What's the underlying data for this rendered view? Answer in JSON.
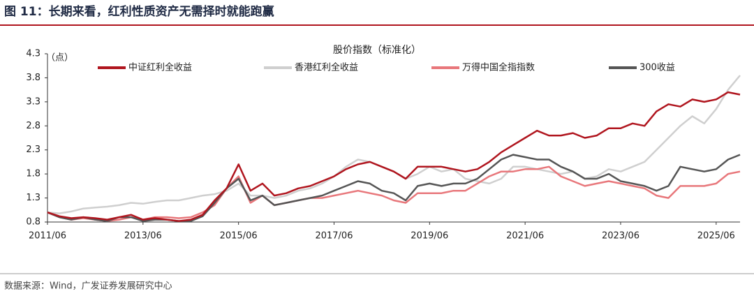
{
  "header": {
    "title": "图 11：长期来看，红利性质资产无需择时就能跑赢"
  },
  "chart_data": {
    "type": "line",
    "title": "股价指数（标准化）",
    "y_label": "（点）",
    "x": [
      "2011/06",
      "2011/09",
      "2011/12",
      "2012/03",
      "2012/06",
      "2012/09",
      "2012/12",
      "2013/03",
      "2013/06",
      "2013/09",
      "2013/12",
      "2014/03",
      "2014/06",
      "2014/09",
      "2014/12",
      "2015/03",
      "2015/06",
      "2015/09",
      "2015/12",
      "2016/03",
      "2016/06",
      "2016/09",
      "2016/12",
      "2017/03",
      "2017/06",
      "2017/09",
      "2017/12",
      "2018/03",
      "2018/06",
      "2018/09",
      "2018/12",
      "2019/03",
      "2019/06",
      "2019/09",
      "2019/12",
      "2020/03",
      "2020/06",
      "2020/09",
      "2020/12",
      "2021/03",
      "2021/06",
      "2021/09",
      "2021/12",
      "2022/03",
      "2022/06",
      "2022/09",
      "2022/12",
      "2023/03",
      "2023/06",
      "2023/09",
      "2023/12",
      "2024/03",
      "2024/06",
      "2024/09",
      "2024/12",
      "2025/03",
      "2025/06",
      "2025/09",
      "2025/12"
    ],
    "series": [
      {
        "name": "中证红利全收益",
        "color": "#b0151e",
        "values": [
          1.0,
          0.92,
          0.88,
          0.9,
          0.88,
          0.85,
          0.9,
          0.95,
          0.85,
          0.88,
          0.85,
          0.82,
          0.85,
          0.95,
          1.25,
          1.5,
          2.0,
          1.45,
          1.6,
          1.35,
          1.4,
          1.5,
          1.55,
          1.65,
          1.75,
          1.9,
          2.0,
          2.05,
          1.95,
          1.85,
          1.7,
          1.95,
          1.95,
          1.95,
          1.9,
          1.85,
          1.9,
          2.05,
          2.25,
          2.4,
          2.55,
          2.7,
          2.6,
          2.6,
          2.65,
          2.55,
          2.6,
          2.75,
          2.75,
          2.85,
          2.8,
          3.1,
          3.25,
          3.2,
          3.35,
          3.3,
          3.35,
          3.5,
          3.45
        ]
      },
      {
        "name": "香港红利全收益",
        "color": "#cfcfcf",
        "values": [
          1.0,
          0.98,
          1.02,
          1.08,
          1.1,
          1.12,
          1.15,
          1.2,
          1.18,
          1.22,
          1.25,
          1.25,
          1.3,
          1.35,
          1.38,
          1.45,
          1.6,
          1.35,
          1.35,
          1.3,
          1.35,
          1.45,
          1.5,
          1.6,
          1.75,
          1.95,
          2.1,
          2.05,
          1.95,
          1.85,
          1.7,
          1.8,
          1.95,
          1.85,
          1.9,
          1.7,
          1.65,
          1.6,
          1.7,
          1.95,
          1.95,
          1.9,
          1.85,
          1.8,
          1.85,
          1.7,
          1.75,
          1.9,
          1.85,
          1.95,
          2.05,
          2.3,
          2.55,
          2.8,
          3.0,
          2.85,
          3.15,
          3.55,
          3.85
        ]
      },
      {
        "name": "万得中国全指指数",
        "color": "#e8777b",
        "values": [
          1.0,
          0.9,
          0.85,
          0.88,
          0.85,
          0.82,
          0.85,
          0.9,
          0.85,
          0.9,
          0.9,
          0.88,
          0.9,
          1.0,
          1.15,
          1.5,
          1.75,
          1.2,
          1.35,
          1.15,
          1.2,
          1.25,
          1.3,
          1.3,
          1.35,
          1.4,
          1.45,
          1.4,
          1.35,
          1.25,
          1.2,
          1.4,
          1.4,
          1.4,
          1.45,
          1.45,
          1.6,
          1.75,
          1.85,
          1.85,
          1.9,
          1.9,
          1.95,
          1.75,
          1.65,
          1.55,
          1.6,
          1.65,
          1.6,
          1.55,
          1.5,
          1.35,
          1.3,
          1.55,
          1.55,
          1.55,
          1.6,
          1.8,
          1.85
        ]
      },
      {
        "name": "300收益",
        "color": "#555555",
        "values": [
          1.0,
          0.9,
          0.85,
          0.9,
          0.85,
          0.82,
          0.9,
          0.9,
          0.82,
          0.85,
          0.85,
          0.82,
          0.82,
          0.92,
          1.2,
          1.5,
          1.7,
          1.25,
          1.35,
          1.15,
          1.2,
          1.25,
          1.3,
          1.35,
          1.45,
          1.55,
          1.65,
          1.6,
          1.45,
          1.4,
          1.25,
          1.55,
          1.6,
          1.55,
          1.6,
          1.6,
          1.7,
          1.9,
          2.1,
          2.2,
          2.15,
          2.1,
          2.1,
          1.95,
          1.85,
          1.7,
          1.7,
          1.8,
          1.65,
          1.6,
          1.55,
          1.45,
          1.55,
          1.95,
          1.9,
          1.85,
          1.9,
          2.1,
          2.2
        ]
      }
    ],
    "xlim": [
      "2011/06",
      "2025/12"
    ],
    "xticks": [
      "2011/06",
      "2013/06",
      "2015/06",
      "2017/06",
      "2019/06",
      "2021/06",
      "2023/06",
      "2025/06"
    ],
    "ylim": [
      0.8,
      4.3
    ],
    "yticks": [
      0.8,
      1.3,
      1.8,
      2.3,
      2.8,
      3.3,
      3.8,
      4.3
    ]
  },
  "footer": {
    "source": "数据来源：Wind，广发证券发展研究中心"
  }
}
